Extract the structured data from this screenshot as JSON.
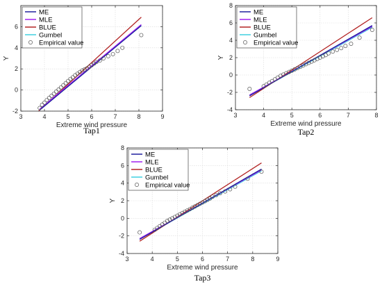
{
  "colors": {
    "ME": "#1f1f9e",
    "MLE": "#a020f0",
    "BLUE": "#b22222",
    "Gumbel": "#3fd0e0",
    "Empirical value": "#555555"
  },
  "chart_data": [
    {
      "type": "line",
      "caption": "Tap1",
      "xlabel": "Extreme wind pressure",
      "ylabel": "Y",
      "xlim": [
        3,
        9
      ],
      "ylim": [
        -2,
        8
      ],
      "xticks": [
        3,
        4,
        5,
        6,
        7,
        8,
        9
      ],
      "yticks": [
        -2,
        0,
        2,
        4,
        6
      ],
      "grid": true,
      "legend_position": "top-left",
      "series": [
        {
          "name": "ME",
          "kind": "line",
          "x": [
            3.8,
            8.1
          ],
          "y": [
            -1.9,
            6.1
          ]
        },
        {
          "name": "MLE",
          "kind": "line",
          "x": [
            3.8,
            8.1
          ],
          "y": [
            -1.8,
            6.2
          ]
        },
        {
          "name": "BLUE",
          "kind": "line",
          "x": [
            3.75,
            8.1
          ],
          "y": [
            -2.0,
            6.9
          ]
        },
        {
          "name": "Gumbel",
          "kind": "line",
          "x": [
            3.8,
            8.1
          ],
          "y": [
            -1.85,
            6.1
          ]
        },
        {
          "name": "Empirical value",
          "kind": "scatter",
          "x": [
            3.8,
            3.9,
            4.0,
            4.1,
            4.2,
            4.3,
            4.4,
            4.5,
            4.6,
            4.7,
            4.8,
            4.9,
            5.0,
            5.1,
            5.2,
            5.3,
            5.4,
            5.5,
            5.6,
            5.7,
            5.8,
            5.9,
            6.0,
            6.1,
            6.2,
            6.35,
            6.5,
            6.7,
            6.9,
            7.1,
            7.3,
            8.1
          ],
          "y": [
            -1.7,
            -1.4,
            -1.2,
            -0.95,
            -0.75,
            -0.55,
            -0.35,
            -0.15,
            0.05,
            0.25,
            0.45,
            0.65,
            0.85,
            1.05,
            1.2,
            1.4,
            1.55,
            1.7,
            1.85,
            1.95,
            2.05,
            2.2,
            2.35,
            2.5,
            2.65,
            2.8,
            3.0,
            3.2,
            3.4,
            3.7,
            4.0,
            5.2
          ]
        }
      ]
    },
    {
      "type": "line",
      "caption": "Tap2",
      "xlabel": "Extreme wind pressure",
      "ylabel": "Y",
      "xlim": [
        3,
        8
      ],
      "ylim": [
        -4,
        8
      ],
      "xticks": [
        3,
        4,
        5,
        6,
        7,
        8
      ],
      "yticks": [
        -4,
        -2,
        0,
        2,
        4,
        6,
        8
      ],
      "grid": true,
      "legend_position": "top-left",
      "series": [
        {
          "name": "ME",
          "kind": "line",
          "x": [
            3.5,
            7.85
          ],
          "y": [
            -2.4,
            5.7
          ]
        },
        {
          "name": "MLE",
          "kind": "line",
          "x": [
            3.5,
            7.85
          ],
          "y": [
            -2.3,
            5.6
          ]
        },
        {
          "name": "BLUE",
          "kind": "line",
          "x": [
            3.5,
            7.85
          ],
          "y": [
            -2.6,
            6.6
          ]
        },
        {
          "name": "Gumbel",
          "kind": "line",
          "x": [
            3.5,
            7.85
          ],
          "y": [
            -2.35,
            5.5
          ]
        },
        {
          "name": "Empirical value",
          "kind": "scatter",
          "x": [
            3.5,
            4.0,
            4.1,
            4.2,
            4.3,
            4.4,
            4.5,
            4.6,
            4.7,
            4.8,
            4.9,
            5.0,
            5.1,
            5.2,
            5.3,
            5.4,
            5.5,
            5.6,
            5.7,
            5.8,
            5.9,
            6.0,
            6.1,
            6.2,
            6.3,
            6.45,
            6.6,
            6.75,
            6.9,
            7.1,
            7.4,
            7.85
          ],
          "y": [
            -1.6,
            -1.3,
            -1.1,
            -0.9,
            -0.7,
            -0.5,
            -0.3,
            -0.1,
            0.05,
            0.2,
            0.35,
            0.5,
            0.65,
            0.8,
            0.95,
            1.1,
            1.25,
            1.4,
            1.55,
            1.7,
            1.85,
            2.0,
            2.15,
            2.3,
            2.5,
            2.7,
            2.9,
            3.1,
            3.35,
            3.6,
            4.3,
            5.2
          ]
        }
      ]
    },
    {
      "type": "line",
      "caption": "Tap3",
      "xlabel": "Extreme wind pressure",
      "ylabel": "Y",
      "xlim": [
        3,
        9
      ],
      "ylim": [
        -4,
        8
      ],
      "xticks": [
        3,
        4,
        5,
        6,
        7,
        8,
        9
      ],
      "yticks": [
        -4,
        -2,
        0,
        2,
        4,
        6,
        8
      ],
      "grid": true,
      "legend_position": "top-left",
      "series": [
        {
          "name": "ME",
          "kind": "line",
          "x": [
            3.5,
            8.35
          ],
          "y": [
            -2.4,
            5.6
          ]
        },
        {
          "name": "MLE",
          "kind": "line",
          "x": [
            3.5,
            8.35
          ],
          "y": [
            -2.3,
            5.5
          ]
        },
        {
          "name": "BLUE",
          "kind": "line",
          "x": [
            3.5,
            8.35
          ],
          "y": [
            -2.6,
            6.3
          ]
        },
        {
          "name": "Gumbel",
          "kind": "line",
          "x": [
            3.5,
            8.35
          ],
          "y": [
            -2.35,
            5.4
          ]
        },
        {
          "name": "Empirical value",
          "kind": "scatter",
          "x": [
            3.5,
            4.1,
            4.2,
            4.3,
            4.4,
            4.5,
            4.6,
            4.7,
            4.8,
            4.9,
            5.0,
            5.1,
            5.2,
            5.3,
            5.4,
            5.5,
            5.6,
            5.7,
            5.8,
            5.9,
            6.0,
            6.1,
            6.2,
            6.3,
            6.4,
            6.55,
            6.7,
            6.9,
            7.1,
            7.3,
            7.8,
            8.35
          ],
          "y": [
            -1.6,
            -1.3,
            -1.1,
            -0.9,
            -0.7,
            -0.5,
            -0.3,
            -0.15,
            0.0,
            0.15,
            0.3,
            0.45,
            0.6,
            0.75,
            0.9,
            1.05,
            1.2,
            1.35,
            1.5,
            1.65,
            1.8,
            1.95,
            2.1,
            2.25,
            2.45,
            2.65,
            2.85,
            3.05,
            3.3,
            3.6,
            4.5,
            5.3
          ]
        }
      ]
    }
  ]
}
